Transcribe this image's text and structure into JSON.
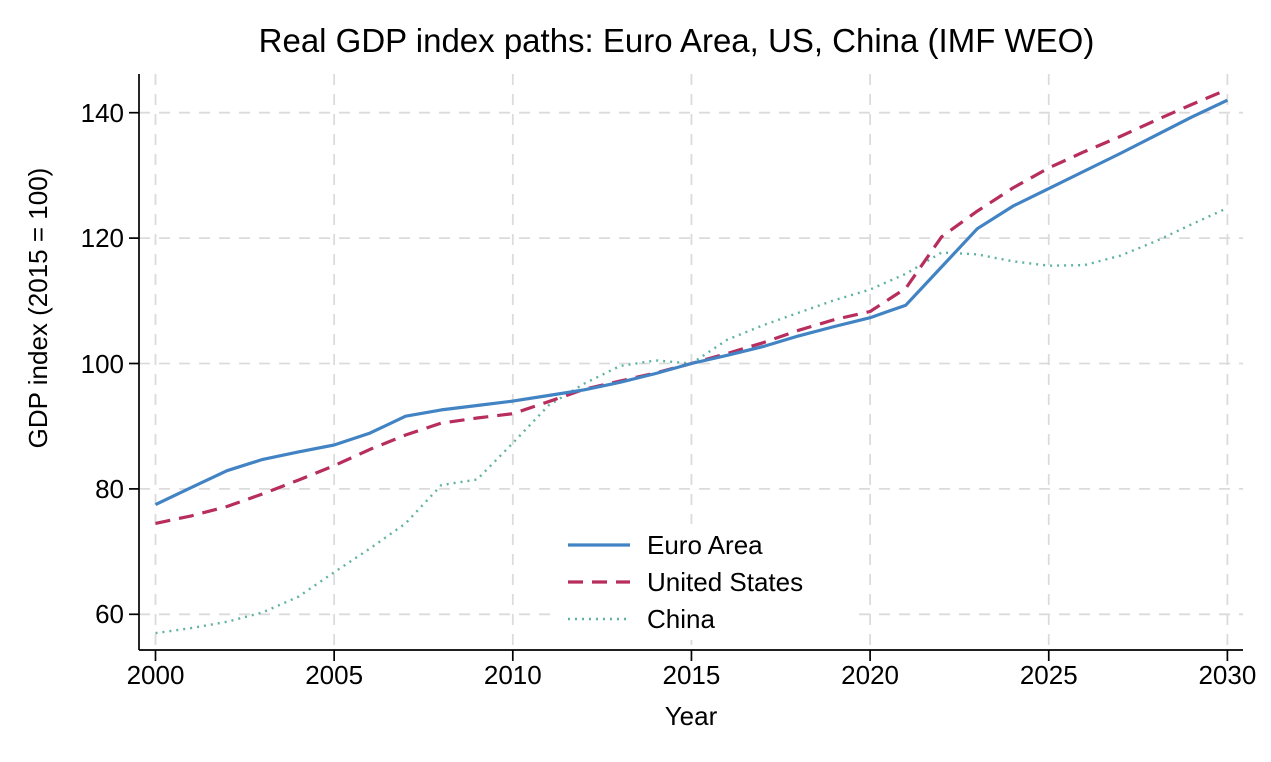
{
  "chart_data": {
    "type": "line",
    "title": "Real GDP index paths: Euro Area, US, China (IMF WEO)",
    "xlabel": "Year",
    "ylabel": "GDP index (2015 = 100)",
    "x_ticks": [
      2000,
      2005,
      2010,
      2015,
      2020,
      2025,
      2030
    ],
    "y_ticks": [
      60,
      80,
      100,
      120,
      140
    ],
    "xlim": [
      2000,
      2030
    ],
    "ylim": [
      54,
      146
    ],
    "grid": "dashed-both-axes",
    "legend_position": "inside-lower-center",
    "grid_color": "#dbdbdb",
    "axis_color": "#000000",
    "x": [
      2000,
      2001,
      2002,
      2003,
      2004,
      2005,
      2006,
      2007,
      2008,
      2009,
      2010,
      2011,
      2012,
      2013,
      2014,
      2015,
      2016,
      2017,
      2018,
      2019,
      2020,
      2021,
      2022,
      2023,
      2024,
      2025,
      2026,
      2027,
      2028,
      2029,
      2030
    ],
    "series": [
      {
        "name": "China",
        "color": "#5fb2a1",
        "style": "dotted",
        "values": [
          57.0,
          57.8,
          58.8,
          60.3,
          62.8,
          66.7,
          70.5,
          74.5,
          80.6,
          81.5,
          87.3,
          93.3,
          96.8,
          99.6,
          100.5,
          100.0,
          103.8,
          106.1,
          108.1,
          110.1,
          111.8,
          114.3,
          117.7,
          117.4,
          116.3,
          115.6,
          115.7,
          117.2,
          119.5,
          122.2,
          124.8
        ]
      },
      {
        "name": "United States",
        "color": "#b72d5e",
        "style": "dashed",
        "values": [
          74.5,
          75.7,
          77.2,
          79.2,
          81.4,
          83.7,
          86.3,
          88.6,
          90.5,
          91.3,
          92.0,
          93.9,
          95.9,
          97.2,
          98.5,
          100.0,
          101.6,
          103.3,
          105.3,
          107.0,
          108.3,
          112.0,
          120.2,
          124.3,
          128.0,
          131.2,
          133.8,
          136.2,
          138.8,
          141.3,
          143.7
        ]
      },
      {
        "name": "Euro Area",
        "color": "#4283c4",
        "style": "solid",
        "values": [
          77.5,
          80.2,
          82.9,
          84.7,
          85.9,
          87.0,
          88.9,
          91.6,
          92.6,
          93.3,
          94.0,
          94.9,
          95.8,
          97.0,
          98.4,
          100.0,
          101.3,
          102.7,
          104.4,
          105.9,
          107.3,
          109.3,
          115.4,
          121.5,
          125.1,
          127.9,
          130.7,
          133.5,
          136.4,
          139.3,
          142.0
        ]
      }
    ],
    "legend_order": [
      "Euro Area",
      "United States",
      "China"
    ]
  }
}
